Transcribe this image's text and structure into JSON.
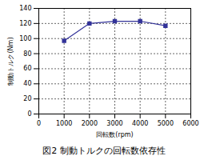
{
  "chart_data": {
    "type": "line",
    "title": "図2 制動トルクの回転数依存性",
    "x_label": "回転数(rpm)",
    "y_label": "制動トルク(Nm)",
    "x": [
      1000,
      2000,
      3000,
      4000,
      5000
    ],
    "values": [
      97,
      120,
      123,
      123,
      117
    ],
    "color": "#333399",
    "marker": "square",
    "xlim": [
      0,
      6000
    ],
    "xticks": [
      0,
      1000,
      2000,
      3000,
      4000,
      5000,
      6000
    ],
    "ylim": [
      0,
      140
    ],
    "yticks": [
      0,
      20,
      40,
      60,
      80,
      100,
      120,
      140
    ],
    "grid": true
  }
}
